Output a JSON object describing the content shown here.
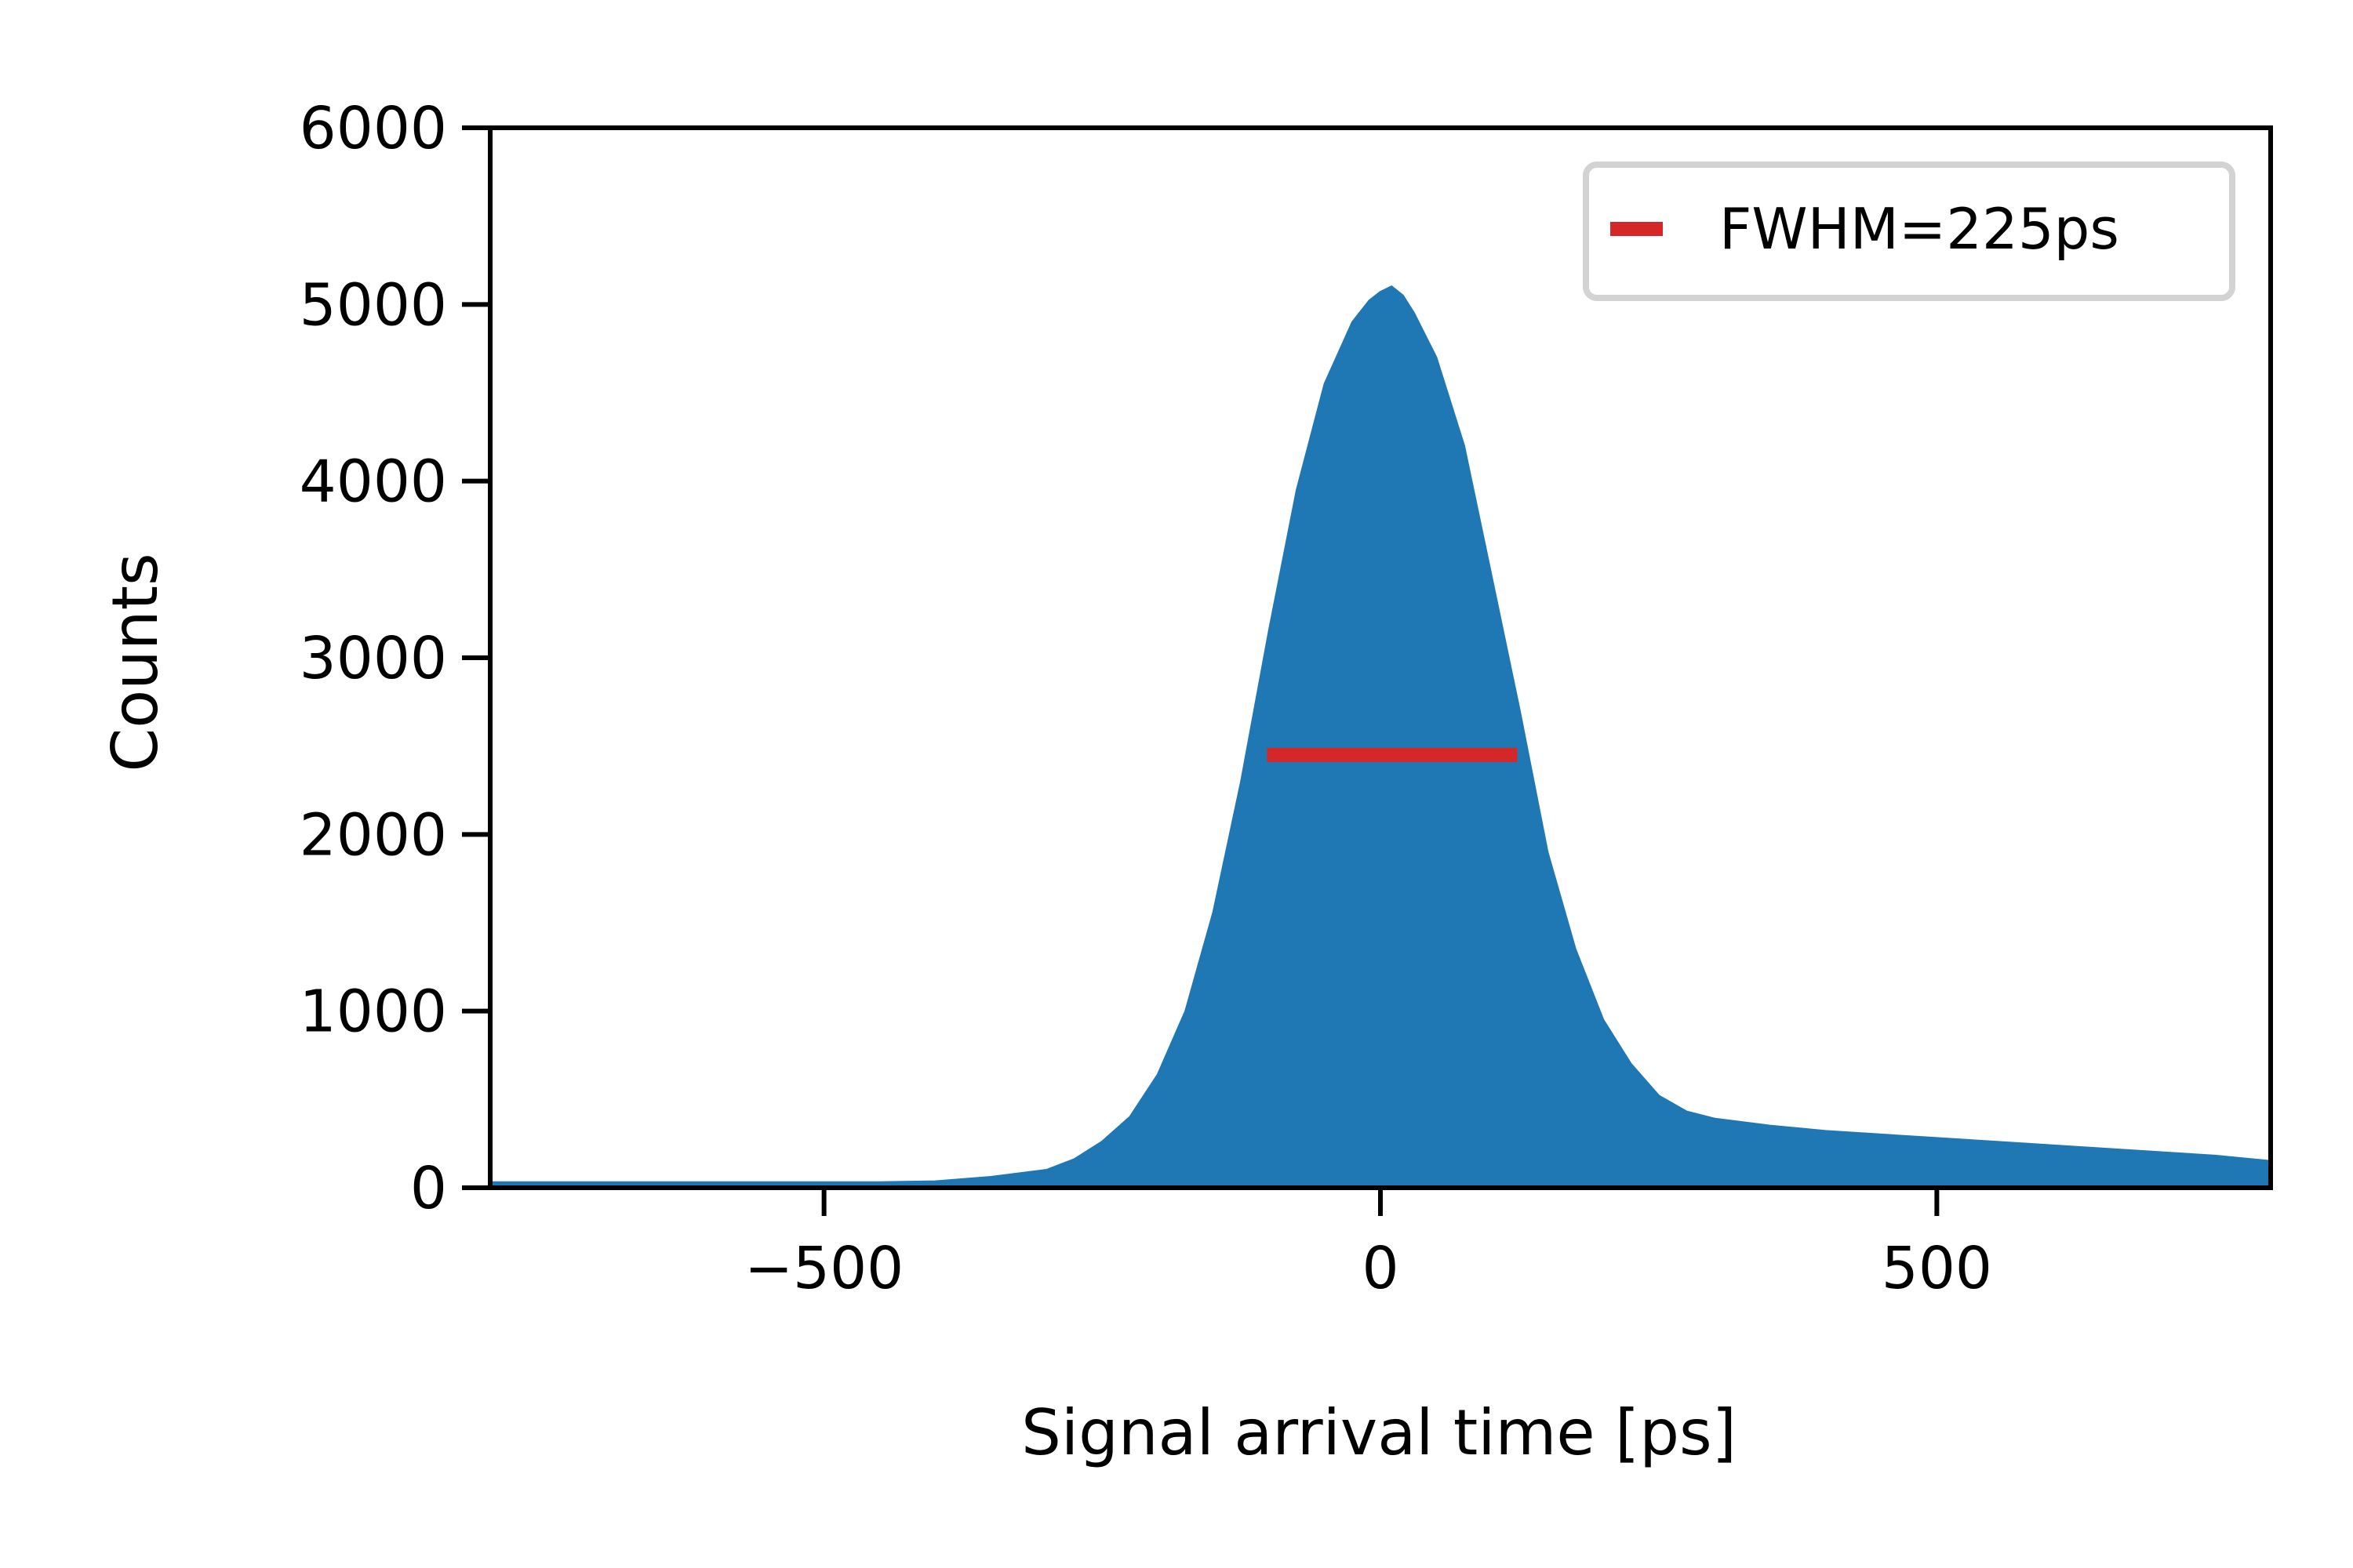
{
  "chart_data": {
    "type": "area",
    "title": "",
    "xlabel": "Signal arrival time [ps]",
    "ylabel": "Counts",
    "xlim": [
      -800,
      800
    ],
    "ylim": [
      0,
      6000
    ],
    "xticks": [
      -500,
      0,
      500
    ],
    "xtick_labels": [
      "−500",
      "0",
      "500"
    ],
    "yticks": [
      0,
      1000,
      2000,
      3000,
      4000,
      5000,
      6000
    ],
    "ytick_labels": [
      "0",
      "1000",
      "2000",
      "3000",
      "4000",
      "5000",
      "6000"
    ],
    "grid": false,
    "legend": {
      "placement": "top-right",
      "entries": [
        "FWHM=225ps"
      ]
    },
    "colors": {
      "histogram": "#1f77b4",
      "fwhm": "#d62728",
      "legend_border": "#d3d3d3"
    },
    "series": [
      {
        "kind": "histogram",
        "x": [
          -800,
          -700,
          -600,
          -500,
          -450,
          -400,
          -350,
          -300,
          -275,
          -250,
          -225,
          -200,
          -175,
          -150,
          -125,
          -100,
          -75,
          -50,
          -25,
          -10,
          0,
          10,
          20,
          30,
          50,
          75,
          100,
          125,
          150,
          175,
          200,
          225,
          250,
          275,
          300,
          350,
          400,
          450,
          500,
          550,
          600,
          650,
          700,
          750,
          800
        ],
        "values": [
          30,
          30,
          30,
          30,
          30,
          35,
          60,
          100,
          160,
          260,
          400,
          640,
          1000,
          1560,
          2300,
          3150,
          3950,
          4550,
          4900,
          5020,
          5070,
          5100,
          5050,
          4950,
          4700,
          4200,
          3450,
          2700,
          1900,
          1350,
          950,
          700,
          520,
          430,
          390,
          350,
          320,
          300,
          280,
          260,
          240,
          220,
          200,
          180,
          150
        ]
      },
      {
        "name": "FWHM=225ps",
        "kind": "segment",
        "x": [
          -102,
          123
        ],
        "values": [
          2450,
          2450
        ]
      }
    ]
  }
}
